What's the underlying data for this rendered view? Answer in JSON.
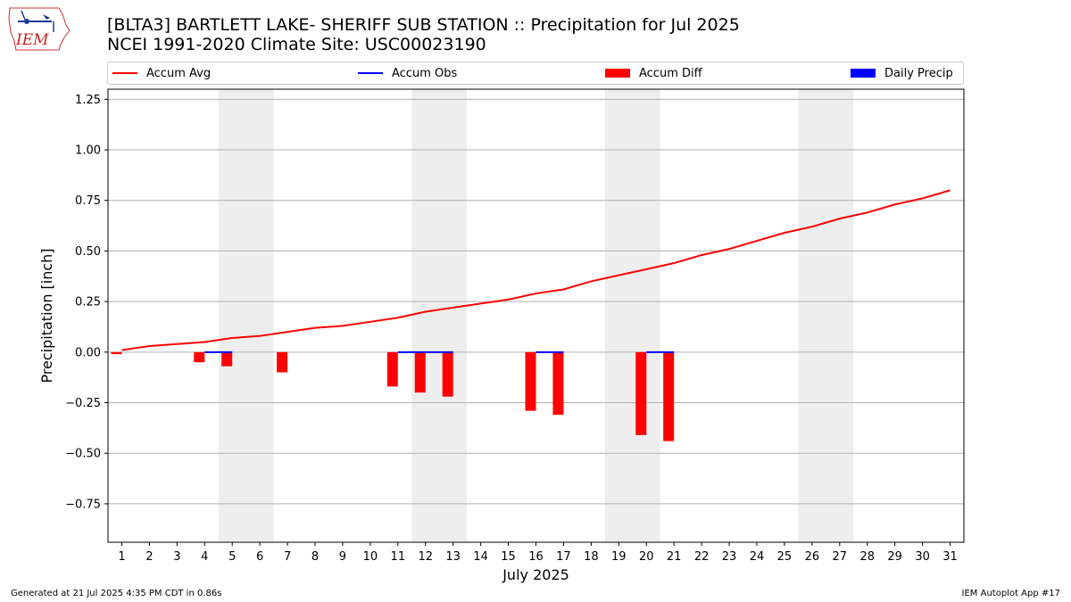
{
  "logo": {
    "text": "IEM",
    "icon": "iem-weather-station-logo"
  },
  "title_line1": "[BLTA3] BARTLETT LAKE- SHERIFF SUB STATION :: Precipitation for Jul 2025",
  "title_line2": "NCEI 1991-2020 Climate Site: USC00023190",
  "footer": {
    "left": "Generated at 21 Jul 2025 4:35 PM CDT in 0.86s",
    "right": "IEM Autoplot App #17"
  },
  "colors": {
    "avg": "#ff0000",
    "obs": "#0000ff",
    "diff": "#ff0000",
    "daily": "#0000ff",
    "weekend": "#eeeeee",
    "grid": "#b0b0b0"
  },
  "chart_data": {
    "type": "bar",
    "xlabel": "July 2025",
    "ylabel": "Precipitation [inch]",
    "xlim": [
      0.5,
      31.5
    ],
    "ylim": [
      -0.94,
      1.3
    ],
    "yticks": [
      -0.75,
      -0.5,
      -0.25,
      0.0,
      0.25,
      0.5,
      0.75,
      1.0,
      1.25
    ],
    "ytick_labels": [
      "−0.75",
      "−0.50",
      "−0.25",
      "0.00",
      "0.25",
      "0.50",
      "0.75",
      "1.00",
      "1.25"
    ],
    "days": [
      1,
      2,
      3,
      4,
      5,
      6,
      7,
      8,
      9,
      10,
      11,
      12,
      13,
      14,
      15,
      16,
      17,
      18,
      19,
      20,
      21,
      22,
      23,
      24,
      25,
      26,
      27,
      28,
      29,
      30,
      31
    ],
    "grid": "horizontal",
    "legend_position": "top",
    "weekend_spans": [
      [
        4.5,
        6.5
      ],
      [
        11.5,
        13.5
      ],
      [
        18.5,
        20.5
      ],
      [
        25.5,
        27.5
      ]
    ],
    "series": [
      {
        "name": "Accum Avg",
        "kind": "line",
        "x": [
          1,
          2,
          3,
          4,
          5,
          6,
          7,
          8,
          9,
          10,
          11,
          12,
          13,
          14,
          15,
          16,
          17,
          18,
          19,
          20,
          21,
          22,
          23,
          24,
          25,
          26,
          27,
          28,
          29,
          30,
          31
        ],
        "values": [
          0.01,
          0.03,
          0.04,
          0.05,
          0.07,
          0.08,
          0.1,
          0.12,
          0.13,
          0.15,
          0.17,
          0.2,
          0.22,
          0.24,
          0.26,
          0.29,
          0.31,
          0.35,
          0.38,
          0.41,
          0.44,
          0.48,
          0.51,
          0.55,
          0.59,
          0.62,
          0.66,
          0.69,
          0.73,
          0.76,
          0.8
        ]
      },
      {
        "name": "Accum Obs",
        "kind": "line",
        "x": [
          1,
          2,
          3,
          4,
          5,
          6,
          7,
          8,
          9,
          10,
          11,
          12,
          13,
          14,
          15,
          16,
          17,
          18,
          19,
          20,
          21
        ],
        "values": [
          0,
          0,
          0,
          0,
          0,
          0,
          0,
          0,
          0,
          0,
          0,
          0,
          0,
          0,
          0,
          0,
          0,
          0,
          0,
          0,
          0
        ]
      },
      {
        "name": "Accum Diff",
        "kind": "bar",
        "x": [
          1,
          4,
          5,
          7,
          11,
          12,
          13,
          16,
          17,
          20,
          21
        ],
        "values": [
          -0.01,
          -0.05,
          -0.07,
          -0.1,
          -0.17,
          -0.2,
          -0.22,
          -0.29,
          -0.31,
          -0.41,
          -0.44
        ]
      },
      {
        "name": "Daily Precip",
        "kind": "bar",
        "x": [],
        "values": []
      }
    ]
  }
}
